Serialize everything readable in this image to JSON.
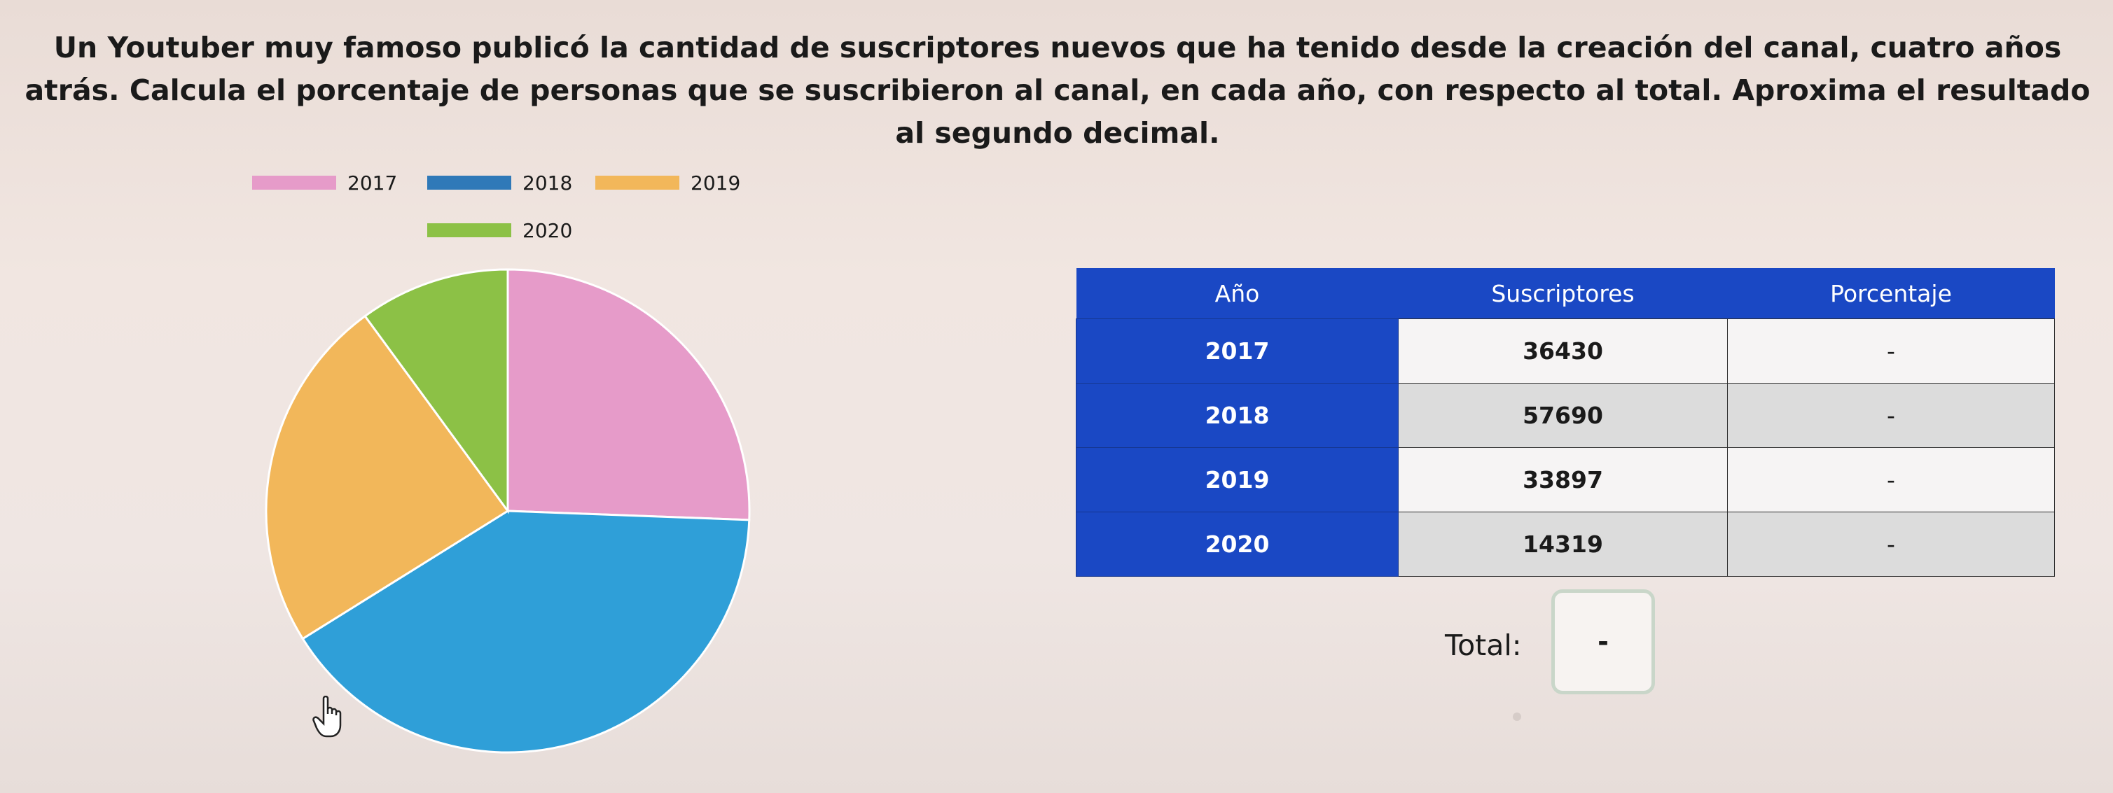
{
  "question": "Un Youtuber muy famoso publicó la cantidad de suscriptores nuevos que ha tenido desde la creación del canal, cuatro años atrás. Calcula el porcentaje de personas que se suscribieron al canal, en cada año, con respecto al total. Aproxima el resultado al segundo decimal.",
  "chart_data": {
    "type": "pie",
    "labels": [
      "2017",
      "2018",
      "2019",
      "2020"
    ],
    "values": [
      36430,
      57690,
      33897,
      14319
    ],
    "colors": [
      "#e69bc9",
      "#2f9fd8",
      "#f2b75a",
      "#8cc146"
    ],
    "legend_position": "top"
  },
  "table": {
    "headers": [
      "Año",
      "Suscriptores",
      "Porcentaje"
    ],
    "rows": [
      {
        "year": "2017",
        "subs": "36430",
        "pct": "-"
      },
      {
        "year": "2018",
        "subs": "57690",
        "pct": "-"
      },
      {
        "year": "2019",
        "subs": "33897",
        "pct": "-"
      },
      {
        "year": "2020",
        "subs": "14319",
        "pct": "-"
      }
    ]
  },
  "total": {
    "label": "Total:",
    "value": "-"
  },
  "icons": {
    "cursor": "hand-pointer-icon"
  }
}
